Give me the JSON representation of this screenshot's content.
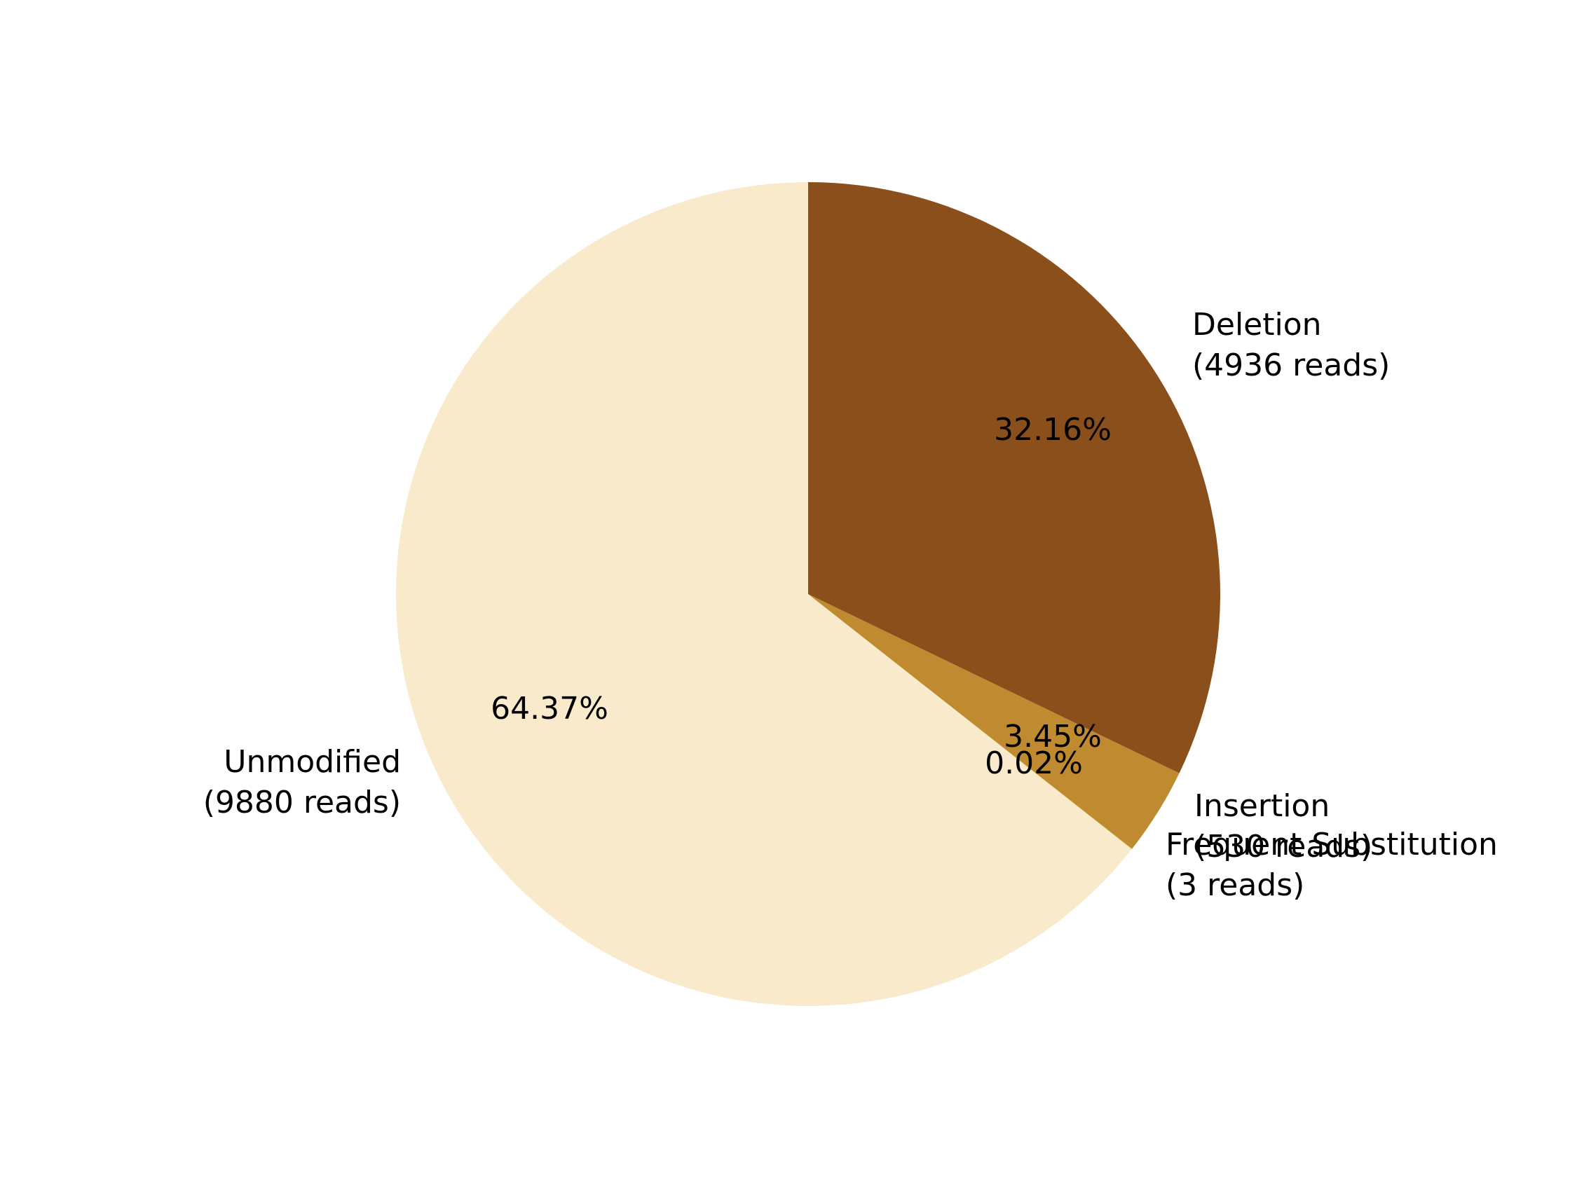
{
  "chart_data": {
    "type": "pie",
    "title": "",
    "start_angle_deg": 90,
    "direction": "clockwise",
    "slices": [
      {
        "name_line1": "Deletion",
        "name_line2": "(4936 reads)",
        "reads": 4936,
        "percent_label": "32.16%",
        "color": "#8B4F1B"
      },
      {
        "name_line1": "Insertion",
        "name_line2": "(530 reads)",
        "reads": 530,
        "percent_label": "3.45%",
        "color": "#BF8A30"
      },
      {
        "name_line1": "Frequent Substitution",
        "name_line2": "(3 reads)",
        "reads": 3,
        "percent_label": "0.02%",
        "color": "#DCCB6E"
      },
      {
        "name_line1": "Unmodified",
        "name_line2": "(9880 reads)",
        "reads": 9880,
        "percent_label": "64.37%",
        "color": "#F8EACB"
      }
    ]
  }
}
